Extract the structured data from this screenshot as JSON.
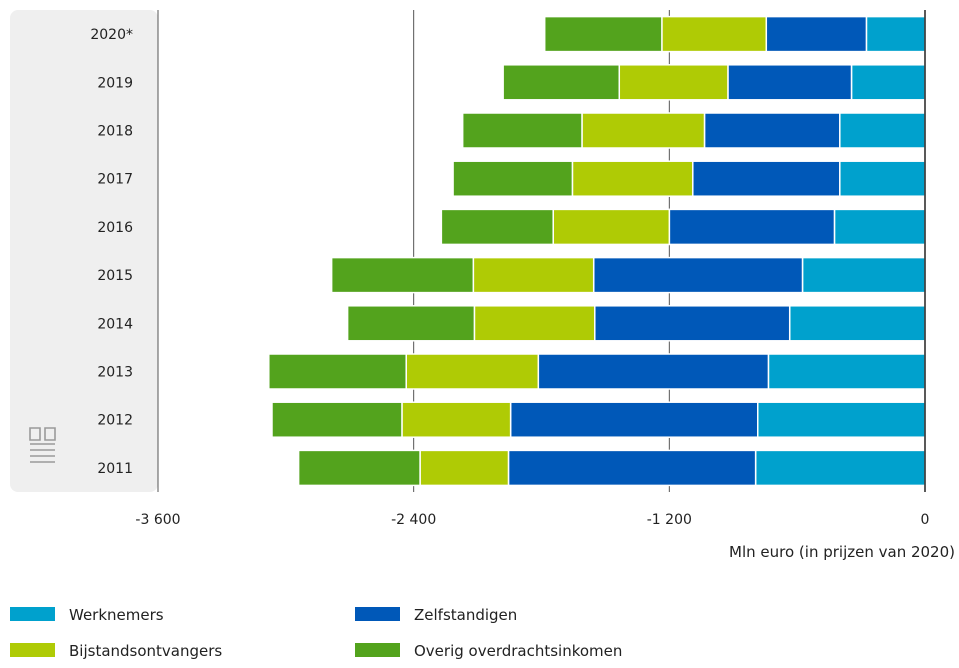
{
  "chart_data": {
    "type": "bar",
    "orientation": "horizontal",
    "stacked": true,
    "categories": [
      "2020*",
      "2019",
      "2018",
      "2017",
      "2016",
      "2015",
      "2014",
      "2013",
      "2012",
      "2011"
    ],
    "series": [
      {
        "name": "Werknemers",
        "color": "#00a1cd",
        "values": [
          -275,
          -345,
          -400,
          -400,
          -425,
          -575,
          -635,
          -735,
          -785,
          -795
        ]
      },
      {
        "name": "Zelfstandigen",
        "color": "#0058b8",
        "values": [
          -470,
          -580,
          -635,
          -690,
          -775,
          -980,
          -915,
          -1080,
          -1160,
          -1160
        ]
      },
      {
        "name": "Bijstandsontvangers",
        "color": "#afcb05",
        "values": [
          -490,
          -510,
          -575,
          -565,
          -545,
          -565,
          -565,
          -620,
          -510,
          -415
        ]
      },
      {
        "name": "Overig overdrachtsinkomen",
        "color": "#53a31d",
        "values": [
          -550,
          -545,
          -560,
          -560,
          -525,
          -665,
          -595,
          -645,
          -610,
          -570
        ]
      }
    ],
    "xlim": [
      -3600,
      0
    ],
    "ticks": [
      -3600,
      -2400,
      -1200,
      0
    ],
    "tick_labels": [
      "-3 600",
      "-2 400",
      "-1 200",
      "0"
    ],
    "xlabel": "Mln euro (in prijzen van 2020)",
    "grid": true,
    "legend_position": "bottom"
  }
}
